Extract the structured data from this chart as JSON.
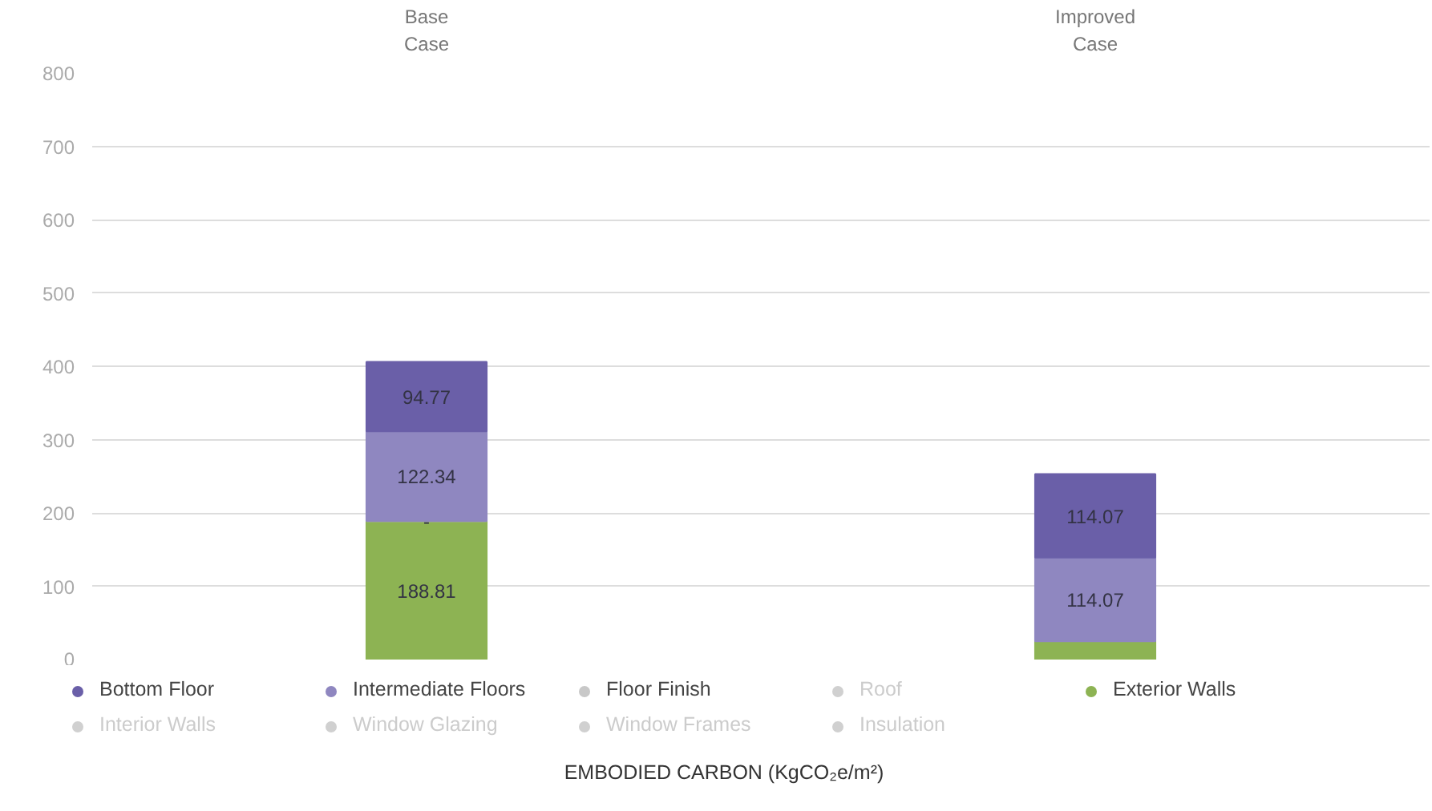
{
  "chart_data": {
    "type": "bar",
    "stacked": true,
    "categories": [
      "Base Case",
      "Improved Case"
    ],
    "xlabel": "EMBODIED CARBON (KgCO₂e/m²)",
    "ylim": [
      0,
      800
    ],
    "yticks": [
      0,
      100,
      200,
      300,
      400,
      500,
      600,
      700,
      800
    ],
    "grid": "y",
    "legend": "bottom",
    "series": [
      {
        "name": "Exterior Walls",
        "color": "#8db353",
        "values": [
          188.81,
          25
        ],
        "value_labels": [
          "188.81",
          null
        ]
      },
      {
        "name": "Floor Finish",
        "color": "#c8c8c8",
        "values": [
          0,
          null
        ],
        "value_labels": [
          "-",
          null
        ]
      },
      {
        "name": "Intermediate Floors",
        "color": "#8f87c0",
        "values": [
          122.34,
          114.07
        ],
        "value_labels": [
          "122.34",
          "114.07"
        ]
      },
      {
        "name": "Bottom Floor",
        "color": "#6a5fa8",
        "values": [
          94.77,
          114.07
        ],
        "value_labels": [
          "94.77",
          "114.07"
        ]
      },
      {
        "name": "Roof",
        "color": "#d0d0d0",
        "values": [
          null,
          null
        ]
      },
      {
        "name": "Interior Walls",
        "color": "#d0d0d0",
        "values": [
          null,
          null
        ]
      },
      {
        "name": "Window Glazing",
        "color": "#d0d0d0",
        "values": [
          null,
          null
        ]
      },
      {
        "name": "Window Frames",
        "color": "#d0d0d0",
        "values": [
          null,
          null
        ]
      },
      {
        "name": "Insulation",
        "color": "#d0d0d0",
        "values": [
          null,
          null
        ]
      }
    ]
  }
}
